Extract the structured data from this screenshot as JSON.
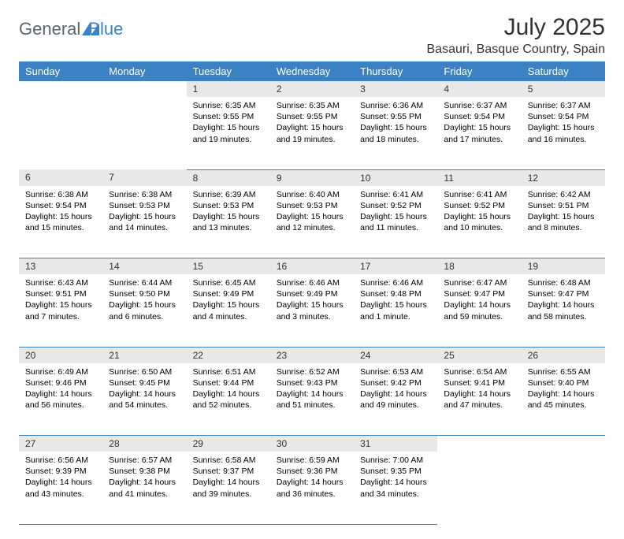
{
  "brand": {
    "general": "General",
    "blue": "Blue",
    "logo_fill": "#3b82c4"
  },
  "header": {
    "title": "July 2025",
    "location": "Basauri, Basque Country, Spain"
  },
  "style": {
    "header_bg": "#3b82c4",
    "header_fg": "#ffffff",
    "daynum_bg": "#e8e8e8",
    "row_divider": "#3b82c4",
    "page_bg": "#ffffff",
    "body_font_size": 10.5,
    "daynum_font_size": 12,
    "th_font_size": 13
  },
  "weekdays": [
    "Sunday",
    "Monday",
    "Tuesday",
    "Wednesday",
    "Thursday",
    "Friday",
    "Saturday"
  ],
  "weeks": [
    [
      null,
      null,
      {
        "n": "1",
        "sr": "Sunrise: 6:35 AM",
        "ss": "Sunset: 9:55 PM",
        "dl": "Daylight: 15 hours and 19 minutes."
      },
      {
        "n": "2",
        "sr": "Sunrise: 6:35 AM",
        "ss": "Sunset: 9:55 PM",
        "dl": "Daylight: 15 hours and 19 minutes."
      },
      {
        "n": "3",
        "sr": "Sunrise: 6:36 AM",
        "ss": "Sunset: 9:55 PM",
        "dl": "Daylight: 15 hours and 18 minutes."
      },
      {
        "n": "4",
        "sr": "Sunrise: 6:37 AM",
        "ss": "Sunset: 9:54 PM",
        "dl": "Daylight: 15 hours and 17 minutes."
      },
      {
        "n": "5",
        "sr": "Sunrise: 6:37 AM",
        "ss": "Sunset: 9:54 PM",
        "dl": "Daylight: 15 hours and 16 minutes."
      }
    ],
    [
      {
        "n": "6",
        "sr": "Sunrise: 6:38 AM",
        "ss": "Sunset: 9:54 PM",
        "dl": "Daylight: 15 hours and 15 minutes."
      },
      {
        "n": "7",
        "sr": "Sunrise: 6:38 AM",
        "ss": "Sunset: 9:53 PM",
        "dl": "Daylight: 15 hours and 14 minutes."
      },
      {
        "n": "8",
        "sr": "Sunrise: 6:39 AM",
        "ss": "Sunset: 9:53 PM",
        "dl": "Daylight: 15 hours and 13 minutes."
      },
      {
        "n": "9",
        "sr": "Sunrise: 6:40 AM",
        "ss": "Sunset: 9:53 PM",
        "dl": "Daylight: 15 hours and 12 minutes."
      },
      {
        "n": "10",
        "sr": "Sunrise: 6:41 AM",
        "ss": "Sunset: 9:52 PM",
        "dl": "Daylight: 15 hours and 11 minutes."
      },
      {
        "n": "11",
        "sr": "Sunrise: 6:41 AM",
        "ss": "Sunset: 9:52 PM",
        "dl": "Daylight: 15 hours and 10 minutes."
      },
      {
        "n": "12",
        "sr": "Sunrise: 6:42 AM",
        "ss": "Sunset: 9:51 PM",
        "dl": "Daylight: 15 hours and 8 minutes."
      }
    ],
    [
      {
        "n": "13",
        "sr": "Sunrise: 6:43 AM",
        "ss": "Sunset: 9:51 PM",
        "dl": "Daylight: 15 hours and 7 minutes."
      },
      {
        "n": "14",
        "sr": "Sunrise: 6:44 AM",
        "ss": "Sunset: 9:50 PM",
        "dl": "Daylight: 15 hours and 6 minutes."
      },
      {
        "n": "15",
        "sr": "Sunrise: 6:45 AM",
        "ss": "Sunset: 9:49 PM",
        "dl": "Daylight: 15 hours and 4 minutes."
      },
      {
        "n": "16",
        "sr": "Sunrise: 6:46 AM",
        "ss": "Sunset: 9:49 PM",
        "dl": "Daylight: 15 hours and 3 minutes."
      },
      {
        "n": "17",
        "sr": "Sunrise: 6:46 AM",
        "ss": "Sunset: 9:48 PM",
        "dl": "Daylight: 15 hours and 1 minute."
      },
      {
        "n": "18",
        "sr": "Sunrise: 6:47 AM",
        "ss": "Sunset: 9:47 PM",
        "dl": "Daylight: 14 hours and 59 minutes."
      },
      {
        "n": "19",
        "sr": "Sunrise: 6:48 AM",
        "ss": "Sunset: 9:47 PM",
        "dl": "Daylight: 14 hours and 58 minutes."
      }
    ],
    [
      {
        "n": "20",
        "sr": "Sunrise: 6:49 AM",
        "ss": "Sunset: 9:46 PM",
        "dl": "Daylight: 14 hours and 56 minutes."
      },
      {
        "n": "21",
        "sr": "Sunrise: 6:50 AM",
        "ss": "Sunset: 9:45 PM",
        "dl": "Daylight: 14 hours and 54 minutes."
      },
      {
        "n": "22",
        "sr": "Sunrise: 6:51 AM",
        "ss": "Sunset: 9:44 PM",
        "dl": "Daylight: 14 hours and 52 minutes."
      },
      {
        "n": "23",
        "sr": "Sunrise: 6:52 AM",
        "ss": "Sunset: 9:43 PM",
        "dl": "Daylight: 14 hours and 51 minutes."
      },
      {
        "n": "24",
        "sr": "Sunrise: 6:53 AM",
        "ss": "Sunset: 9:42 PM",
        "dl": "Daylight: 14 hours and 49 minutes."
      },
      {
        "n": "25",
        "sr": "Sunrise: 6:54 AM",
        "ss": "Sunset: 9:41 PM",
        "dl": "Daylight: 14 hours and 47 minutes."
      },
      {
        "n": "26",
        "sr": "Sunrise: 6:55 AM",
        "ss": "Sunset: 9:40 PM",
        "dl": "Daylight: 14 hours and 45 minutes."
      }
    ],
    [
      {
        "n": "27",
        "sr": "Sunrise: 6:56 AM",
        "ss": "Sunset: 9:39 PM",
        "dl": "Daylight: 14 hours and 43 minutes."
      },
      {
        "n": "28",
        "sr": "Sunrise: 6:57 AM",
        "ss": "Sunset: 9:38 PM",
        "dl": "Daylight: 14 hours and 41 minutes."
      },
      {
        "n": "29",
        "sr": "Sunrise: 6:58 AM",
        "ss": "Sunset: 9:37 PM",
        "dl": "Daylight: 14 hours and 39 minutes."
      },
      {
        "n": "30",
        "sr": "Sunrise: 6:59 AM",
        "ss": "Sunset: 9:36 PM",
        "dl": "Daylight: 14 hours and 36 minutes."
      },
      {
        "n": "31",
        "sr": "Sunrise: 7:00 AM",
        "ss": "Sunset: 9:35 PM",
        "dl": "Daylight: 14 hours and 34 minutes."
      },
      null,
      null
    ]
  ]
}
